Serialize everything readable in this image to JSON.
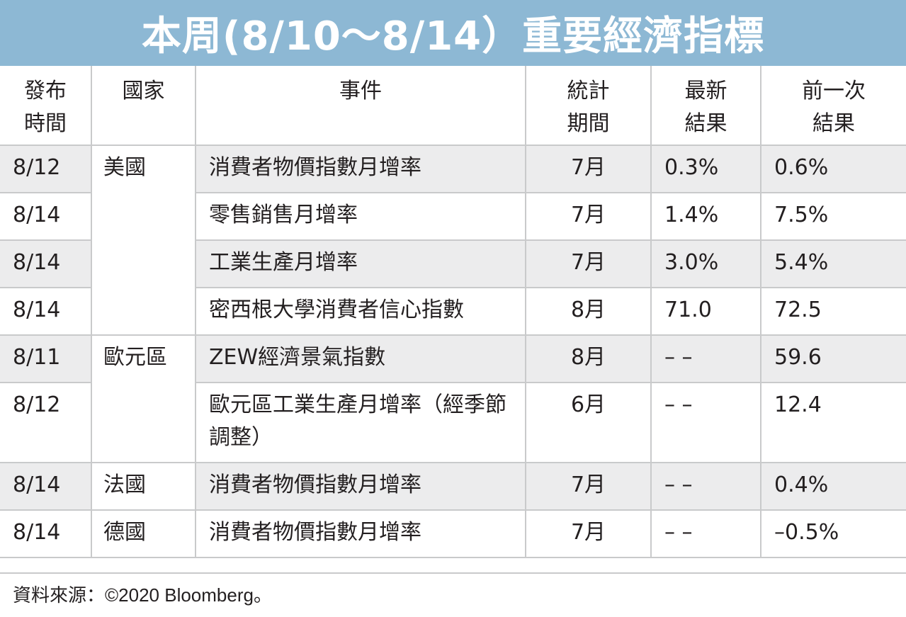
{
  "title": "本周(8/10～8/14）重要經濟指標",
  "headers": {
    "date": [
      "發布",
      "時間"
    ],
    "country": [
      "國家"
    ],
    "event": [
      "事件"
    ],
    "period": [
      "統計",
      "期間"
    ],
    "latest": [
      "最新",
      "結果"
    ],
    "previous": [
      "前一次",
      "結果"
    ]
  },
  "rows": [
    {
      "date": "8/12",
      "country": "美國",
      "event": "消費者物價指數月增率",
      "period": "7月",
      "latest": "0.3%",
      "previous": "0.6%"
    },
    {
      "date": "8/14",
      "country": "",
      "event": "零售銷售月增率",
      "period": "7月",
      "latest": "1.4%",
      "previous": "7.5%"
    },
    {
      "date": "8/14",
      "country": "",
      "event": "工業生產月增率",
      "period": "7月",
      "latest": "3.0%",
      "previous": "5.4%"
    },
    {
      "date": "8/14",
      "country": "",
      "event": "密西根大學消費者信心指數",
      "period": "8月",
      "latest": "71.0",
      "previous": "72.5"
    },
    {
      "date": "8/11",
      "country": "歐元區",
      "event": "ZEW經濟景氣指數",
      "period": "8月",
      "latest": "– –",
      "previous": "59.6"
    },
    {
      "date": "8/12",
      "country": "",
      "event": "歐元區工業生產月增率（經季節調整）",
      "period": "6月",
      "latest": "– –",
      "previous": "12.4"
    },
    {
      "date": "8/14",
      "country": "法國",
      "event": "消費者物價指數月增率",
      "period": "7月",
      "latest": "– –",
      "previous": "0.4%"
    },
    {
      "date": "8/14",
      "country": "德國",
      "event": "消費者物價指數月增率",
      "period": "7月",
      "latest": "– –",
      "previous": "–0.5%"
    }
  ],
  "footer": "資料來源：©2020 Bloomberg。",
  "colors": {
    "title_bg": "#8db8d4",
    "row_shade": "#ececed",
    "grid": "#c9cacb",
    "text": "#231f20"
  }
}
